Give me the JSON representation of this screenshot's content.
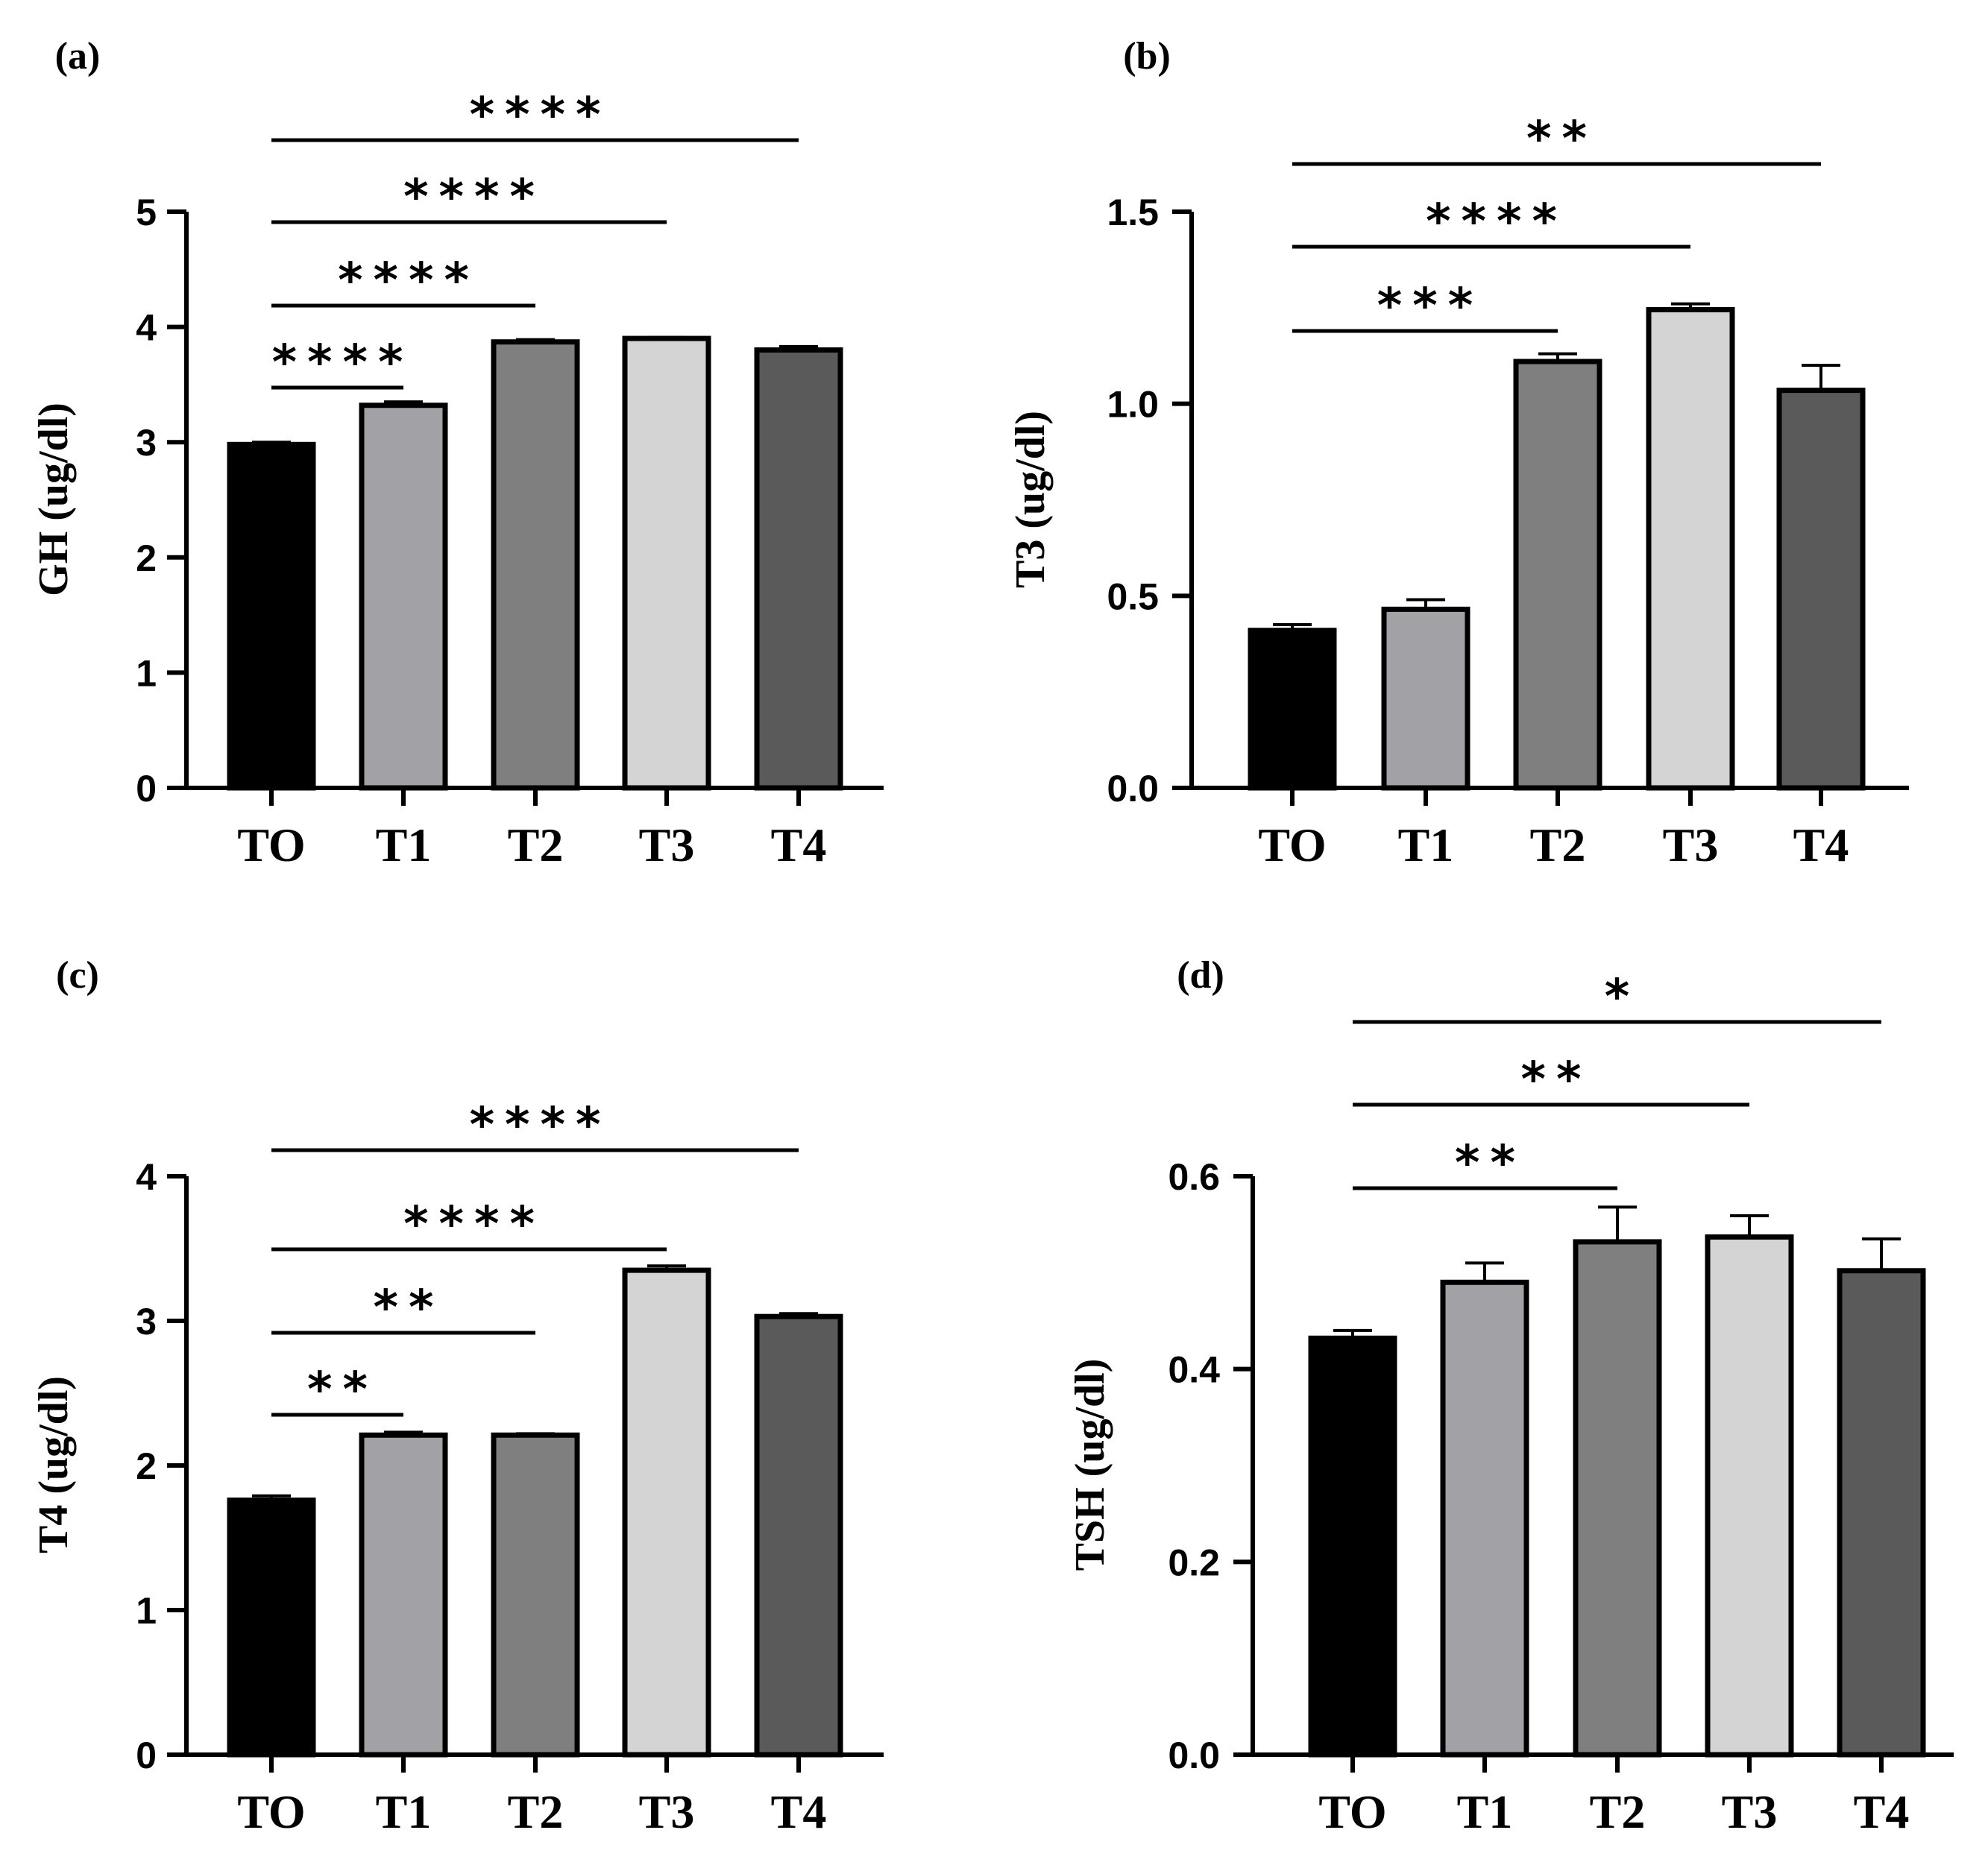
{
  "chart_data": [
    {
      "type": "bar",
      "panel_label": "(a)",
      "title": "",
      "xlabel": "",
      "ylabel": "GH (ug/dl)",
      "ylim": [
        0,
        5
      ],
      "yticks": [
        0,
        1,
        2,
        3,
        4,
        5
      ],
      "categories": [
        "TO",
        "T1",
        "T2",
        "T3",
        "T4"
      ],
      "values": [
        2.98,
        3.32,
        3.87,
        3.9,
        3.8
      ],
      "errors": [
        0.02,
        0.03,
        0.02,
        0.01,
        0.03
      ],
      "colors": [
        "#000000",
        "#a2a2a6",
        "#7f7f7f",
        "#d4d4d4",
        "#5a5a5a"
      ],
      "significance": [
        {
          "from": "TO",
          "to": "T1",
          "label": "****"
        },
        {
          "from": "TO",
          "to": "T2",
          "label": "****"
        },
        {
          "from": "TO",
          "to": "T3",
          "label": "****"
        },
        {
          "from": "TO",
          "to": "T4",
          "label": "****"
        }
      ]
    },
    {
      "type": "bar",
      "panel_label": "(b)",
      "title": "",
      "xlabel": "",
      "ylabel": "T3 (ug/dl)",
      "ylim": [
        0,
        1.5
      ],
      "yticks": [
        "0.0",
        "0.5",
        "1.0",
        "1.5"
      ],
      "categories": [
        "TO",
        "T1",
        "T2",
        "T3",
        "T4"
      ],
      "values": [
        0.41,
        0.465,
        1.11,
        1.245,
        1.035
      ],
      "errors": [
        0.015,
        0.025,
        0.02,
        0.015,
        0.065
      ],
      "colors": [
        "#000000",
        "#a2a2a6",
        "#7f7f7f",
        "#d4d4d4",
        "#5a5a5a"
      ],
      "significance": [
        {
          "from": "TO",
          "to": "T2",
          "label": "***"
        },
        {
          "from": "TO",
          "to": "T3",
          "label": "****"
        },
        {
          "from": "TO",
          "to": "T4",
          "label": "**"
        }
      ]
    },
    {
      "type": "bar",
      "panel_label": "(c)",
      "title": "",
      "xlabel": "",
      "ylabel": "T4 (ug/dl)",
      "ylim": [
        0,
        4
      ],
      "yticks": [
        0,
        1,
        2,
        3,
        4
      ],
      "categories": [
        "TO",
        "T1",
        "T2",
        "T3",
        "T4"
      ],
      "values": [
        1.76,
        2.21,
        2.21,
        3.35,
        3.03
      ],
      "errors": [
        0.03,
        0.02,
        0.01,
        0.03,
        0.02
      ],
      "colors": [
        "#000000",
        "#a2a2a6",
        "#7f7f7f",
        "#d4d4d4",
        "#5a5a5a"
      ],
      "significance": [
        {
          "from": "TO",
          "to": "T1",
          "label": "**"
        },
        {
          "from": "TO",
          "to": "T2",
          "label": "**"
        },
        {
          "from": "TO",
          "to": "T3",
          "label": "****"
        },
        {
          "from": "TO",
          "to": "T4",
          "label": "****"
        }
      ]
    },
    {
      "type": "bar",
      "panel_label": "(d)",
      "title": "",
      "xlabel": "",
      "ylabel": "TSH (ug/dl)",
      "ylim": [
        0,
        0.6
      ],
      "yticks": [
        "0.0",
        "0.2",
        "0.4",
        "0.6"
      ],
      "categories": [
        "TO",
        "T1",
        "T2",
        "T3",
        "T4"
      ],
      "values": [
        0.432,
        0.49,
        0.532,
        0.537,
        0.502
      ],
      "errors": [
        0.008,
        0.02,
        0.036,
        0.022,
        0.033
      ],
      "colors": [
        "#000000",
        "#a2a2a6",
        "#7f7f7f",
        "#d4d4d4",
        "#5a5a5a"
      ],
      "significance": [
        {
          "from": "TO",
          "to": "T2",
          "label": "**"
        },
        {
          "from": "TO",
          "to": "T3",
          "label": "**"
        },
        {
          "from": "TO",
          "to": "T4",
          "label": "*"
        }
      ]
    }
  ]
}
